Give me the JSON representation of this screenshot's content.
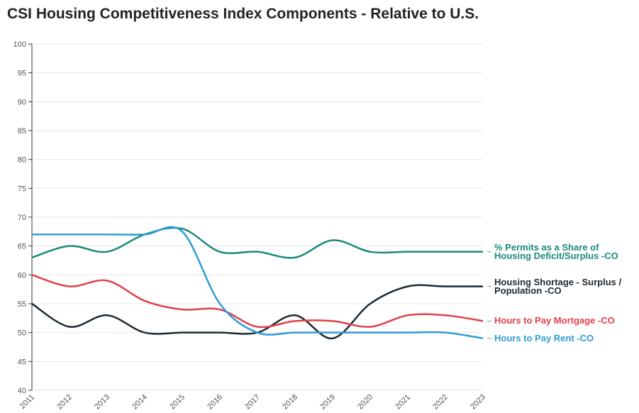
{
  "chart_data": {
    "type": "line",
    "title": "CSI Housing Competitiveness Index Components - Relative to U.S.",
    "categories": [
      "2011",
      "2012",
      "2013",
      "2014",
      "2015",
      "2016",
      "2017",
      "2018",
      "2019",
      "2020",
      "2021",
      "2022",
      "2023"
    ],
    "ylim": [
      40,
      100
    ],
    "yticks": [
      40,
      45,
      50,
      55,
      60,
      65,
      70,
      75,
      80,
      85,
      90,
      95,
      100
    ],
    "grid": true,
    "series": [
      {
        "name": "% Permits as a Share of Housing Deficit/Surplus -CO",
        "color": "#1a8a7a",
        "values": [
          63,
          65,
          64,
          67,
          68,
          64,
          64,
          63,
          66,
          64,
          64,
          64,
          64
        ]
      },
      {
        "name": "Housing Shortage - Surplus / Population -CO",
        "color": "#1e2a33",
        "values": [
          55,
          51,
          53,
          50,
          50,
          50,
          50,
          53,
          49,
          55,
          58,
          58,
          58
        ]
      },
      {
        "name": "Hours to Pay Mortgage -CO",
        "color": "#e0404a",
        "values": [
          60,
          58,
          59,
          55.5,
          54,
          54,
          51,
          52,
          52,
          51,
          53,
          53,
          52
        ]
      },
      {
        "name": "Hours to Pay Rent -CO",
        "color": "#2e9bd6",
        "values": [
          67,
          67,
          67,
          67,
          67.5,
          55,
          50,
          50,
          50,
          50,
          50,
          50,
          49
        ]
      }
    ]
  }
}
